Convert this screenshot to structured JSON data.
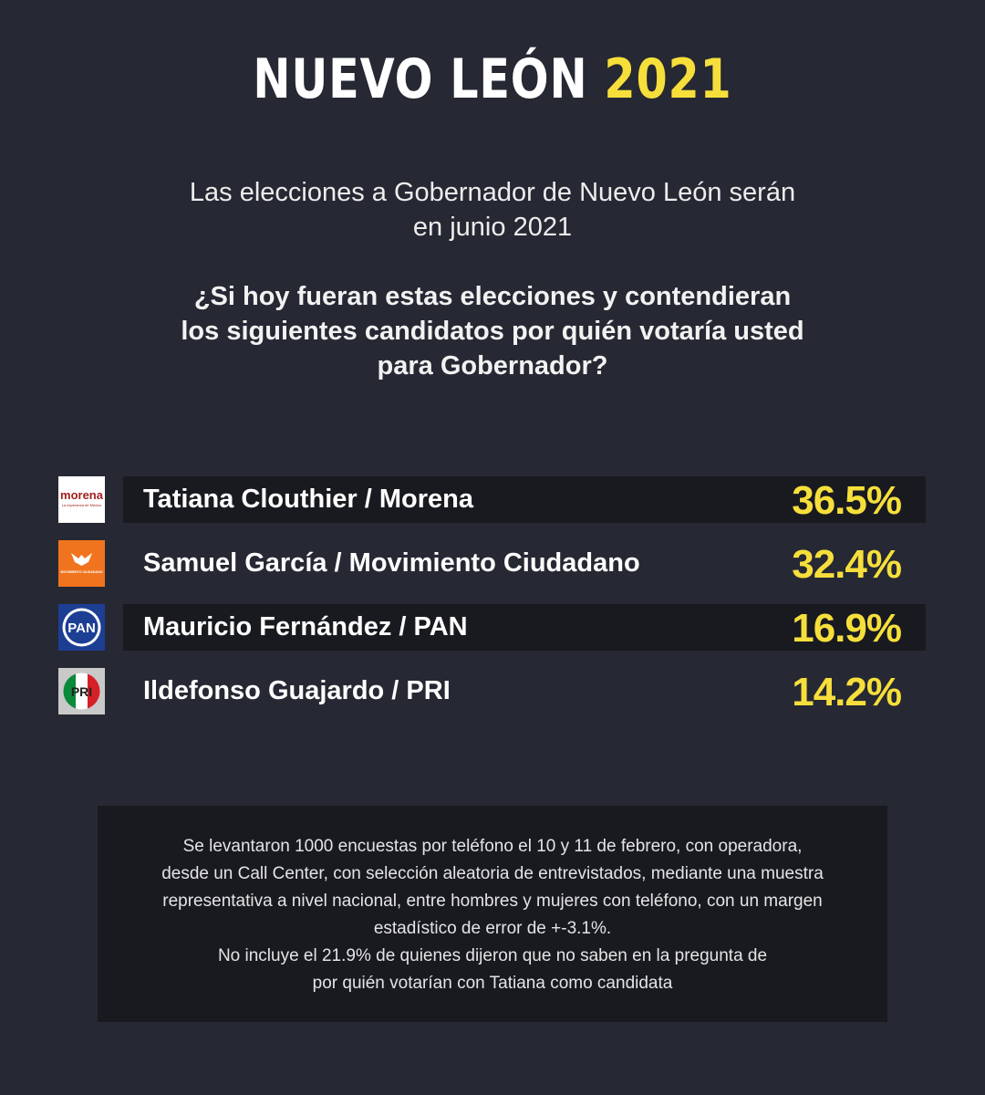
{
  "header": {
    "title_main": "NUEVO LEÓN",
    "title_year": "2021",
    "intro_line1": "Las elecciones a Gobernador de Nuevo León serán",
    "intro_line2": "en junio 2021",
    "question_line1": "¿Si hoy fueran estas elecciones y contendieran",
    "question_line2": "los siguientes candidatos por quién votaría usted",
    "question_line3": "para Gobernador?"
  },
  "colors": {
    "background": "#262833",
    "row_dark": "#191a20",
    "accent_yellow": "#f6df3b",
    "morena": "#a2211f",
    "mc": "#f0741e",
    "pan": "#1c3f94",
    "pri_green": "#0b8a3a",
    "pri_red": "#d62027"
  },
  "chart_data": {
    "type": "table",
    "rows": [
      {
        "candidate": "Tatiana Clouthier / Morena",
        "value": 36.5,
        "label": "36.5%",
        "party_logo": "morena-logo",
        "logo_text": "morena",
        "logo_sub": "La esperanza de México"
      },
      {
        "candidate": "Samuel García / Movimiento Ciudadano",
        "value": 32.4,
        "label": "32.4%",
        "party_logo": "movimiento-ciudadano-logo",
        "logo_text": "MOVIMIENTO CIUDADANO"
      },
      {
        "candidate": "Mauricio Fernández / PAN",
        "value": 16.9,
        "label": "16.9%",
        "party_logo": "pan-logo",
        "logo_text": "PAN"
      },
      {
        "candidate": "Ildefonso Guajardo / PRI",
        "value": 14.2,
        "label": "14.2%",
        "party_logo": "pri-logo",
        "logo_text": "PRI"
      }
    ]
  },
  "note": {
    "line1": "Se levantaron 1000 encuestas por teléfono el 10 y 11 de febrero, con operadora,",
    "line2": "desde un Call Center, con selección aleatoria de entrevistados, mediante una muestra",
    "line3": "representativa a nivel nacional, entre hombres y mujeres con teléfono, con un margen",
    "line4": "estadístico de error de +-3.1%.",
    "line5": "No incluye el 21.9% de quienes dijeron que no saben en la pregunta de",
    "line6": "por quién votarían con Tatiana como candidata"
  }
}
